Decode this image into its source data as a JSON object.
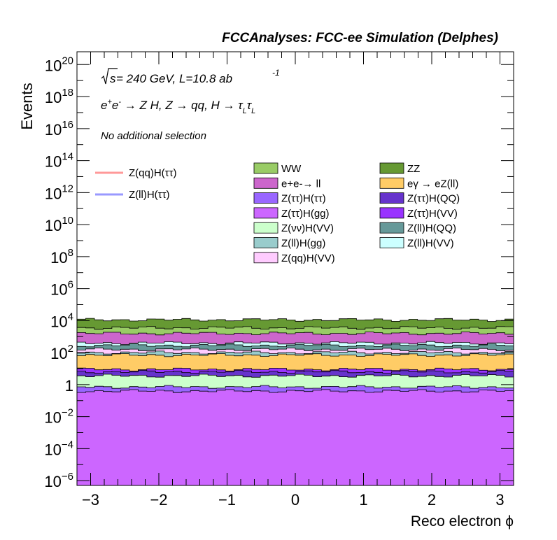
{
  "chart_data": {
    "type": "area",
    "title": "FCCAnalyses: FCC-ee Simulation (Delphes)",
    "xlabel": "Reco electron ϕ",
    "ylabel": "Events",
    "xlim": [
      -3.2,
      3.2
    ],
    "ylim_log10": [
      -6.3,
      20.8
    ],
    "log_y": true,
    "grid": false,
    "x_ticks": [
      -3,
      -2,
      -1,
      0,
      1,
      2,
      3
    ],
    "x_tick_labels": [
      "−3",
      "−2",
      "−1",
      "0",
      "1",
      "2",
      "3"
    ],
    "y_ticks_exp": [
      -6,
      -4,
      -2,
      0,
      2,
      4,
      6,
      8,
      10,
      12,
      14,
      16,
      18,
      20
    ],
    "y_tick_labels": [
      "10^-6",
      "10^-4",
      "10^-2",
      "1",
      "10^2",
      "10^4",
      "10^6",
      "10^8",
      "10^10",
      "10^12",
      "10^14",
      "10^16",
      "10^18",
      "10^20"
    ],
    "annotations": [
      "√s = 240 GeV, L=10.8 ab^-1",
      "e+e- → Z H, Z → qq, H → τLτL",
      "No additional selection"
    ],
    "legend_position": "top-center",
    "stack_order_bottom_to_top": [
      "Z(ττ)H(gg)",
      "Z(ττ)H(ττ)",
      "Z(νν)H(VV)",
      "Z(ττ)H(QQ)",
      "Z(ττ)H(VV)",
      "eγ → eZ(ll)",
      "Z(ll)H(gg)",
      "Z(qq)H(VV)",
      "Z(ll)H(QQ)",
      "Z(ll)H(VV)",
      "e+e-→ ll",
      "WW",
      "ZZ"
    ],
    "stack_totals_log10": {
      "Z(ττ)H(gg)": -0.4,
      "Z(ττ)H(ττ)": -0.15,
      "Z(νν)H(VV)": 0.55,
      "Z(ττ)H(QQ)": 0.8,
      "Z(ττ)H(VV)": 0.95,
      "eγ → eZ(ll)": 1.85,
      "Z(ll)H(gg)": 2.0,
      "Z(qq)H(VV)": 2.2,
      "Z(ll)H(QQ)": 2.45,
      "Z(ll)H(VV)": 2.6,
      "e+e-→ ll": 3.2,
      "WW": 3.55,
      "ZZ": 4.05
    },
    "signal_series": [
      "Z(qq)H(ττ)",
      "Z(ll)H(ττ)"
    ]
  },
  "header": {
    "title": "FCCAnalyses: FCC-ee Simulation (Delphes)"
  },
  "texts": {
    "energy_prefix": "√",
    "energy_s": "s",
    "energy_main": " = 240 GeV, L=10.8 ab",
    "energy_sup": "-1",
    "process_1": "e",
    "process_2": "+",
    "process_3": "e",
    "process_4": "-",
    "process_5": " → Z H, Z  → qq, H  → ",
    "process_6": "τ",
    "process_7": "L",
    "process_8": "τ",
    "process_9": "L",
    "selection": "No additional selection"
  },
  "legend": {
    "signals": [
      {
        "label": "Z(qq)H(ττ)",
        "color": "#ff9999"
      },
      {
        "label": "Z(ll)H(ττ)",
        "color": "#9999ff"
      }
    ],
    "backgrounds": [
      {
        "label": "WW",
        "color": "#99cc66"
      },
      {
        "label": "ZZ",
        "color": "#669933"
      },
      {
        "label": "e+e-→ ll",
        "color": "#cc66cc"
      },
      {
        "label": "eγ → eZ(ll)",
        "color": "#ffcc66"
      },
      {
        "label": "Z(ττ)H(ττ)",
        "color": "#9966ff"
      },
      {
        "label": "Z(ττ)H(QQ)",
        "color": "#6633cc"
      },
      {
        "label": "Z(ττ)H(gg)",
        "color": "#cc66ff"
      },
      {
        "label": "Z(ττ)H(VV)",
        "color": "#9933ff"
      },
      {
        "label": "Z(νν)H(VV)",
        "color": "#ccffcc"
      },
      {
        "label": "Z(ll)H(QQ)",
        "color": "#669999"
      },
      {
        "label": "Z(ll)H(gg)",
        "color": "#99cccc"
      },
      {
        "label": "Z(ll)H(VV)",
        "color": "#ccffff"
      },
      {
        "label": "Z(qq)H(VV)",
        "color": "#ffccff"
      }
    ]
  }
}
